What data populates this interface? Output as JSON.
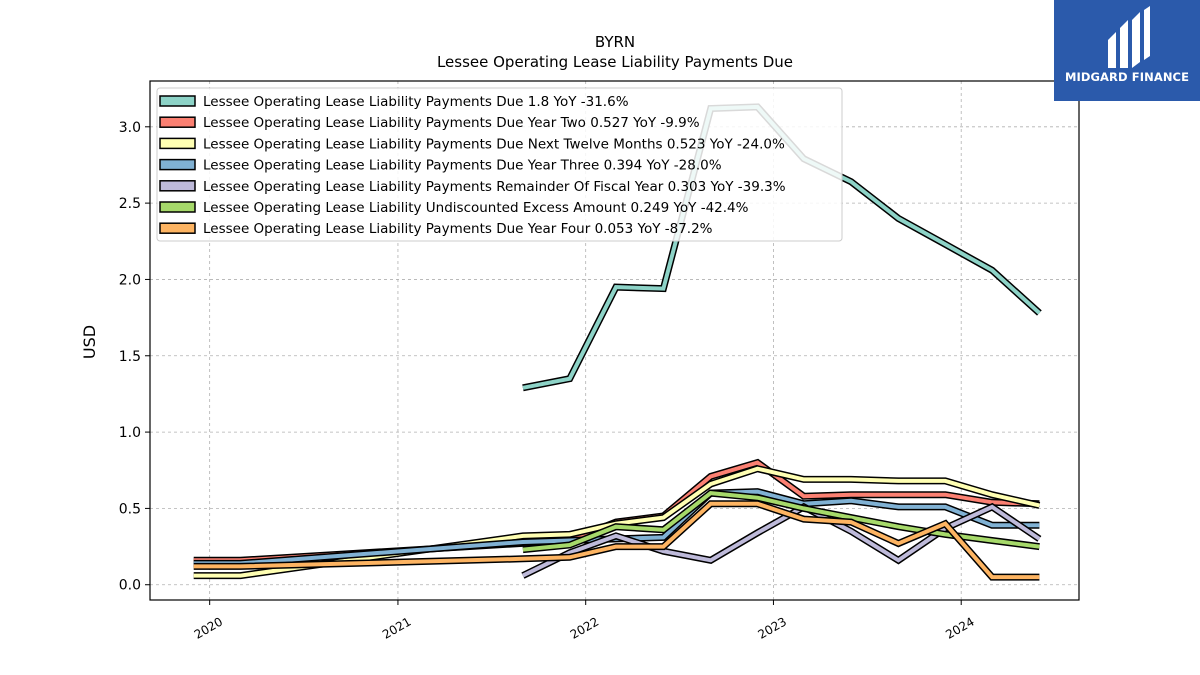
{
  "chart_data": {
    "type": "line",
    "title": "BYRN",
    "subtitle": "Lessee Operating Lease Liability Payments Due",
    "xlabel": "",
    "ylabel": "USD",
    "x_ticks": [
      "2020",
      "2021",
      "2022",
      "2023",
      "2024"
    ],
    "y_ticks": [
      "0.0",
      "0.5",
      "1.0",
      "1.5",
      "2.0",
      "2.5",
      "3.0"
    ],
    "ylim": [
      -0.1,
      3.3
    ],
    "xlim": [
      "2019-09-07",
      "2024-08-17"
    ],
    "grid": true,
    "legend_position": "top-left",
    "series": [
      {
        "name": "Lessee Operating Lease Liability Payments Due  1.8 YoY -31.6%",
        "color": "#8dd3c7",
        "points": [
          [
            "2021-09-01",
            1.29
          ],
          [
            "2021-12-01",
            1.35
          ],
          [
            "2022-03-01",
            1.95
          ],
          [
            "2022-06-01",
            1.94
          ],
          [
            "2022-09-01",
            3.12
          ],
          [
            "2022-12-01",
            3.13
          ],
          [
            "2023-03-01",
            2.79
          ],
          [
            "2023-06-01",
            2.64
          ],
          [
            "2023-09-01",
            2.4
          ],
          [
            "2023-12-01",
            2.23
          ],
          [
            "2024-03-01",
            2.06
          ],
          [
            "2024-06-01",
            1.78
          ]
        ]
      },
      {
        "name": "Lessee Operating Lease Liability Payments Due Year Two  0.527 YoY -9.9%",
        "color": "#fb8072",
        "points": [
          [
            "2019-12-01",
            0.16
          ],
          [
            "2020-03-01",
            0.16
          ],
          [
            "2021-12-01",
            0.29
          ],
          [
            "2022-03-01",
            0.41
          ],
          [
            "2022-06-01",
            0.45
          ],
          [
            "2022-09-01",
            0.71
          ],
          [
            "2022-12-01",
            0.8
          ],
          [
            "2023-03-01",
            0.58
          ],
          [
            "2023-06-01",
            0.59
          ],
          [
            "2023-09-01",
            0.59
          ],
          [
            "2023-12-01",
            0.59
          ],
          [
            "2024-03-01",
            0.54
          ],
          [
            "2024-06-01",
            0.53
          ]
        ]
      },
      {
        "name": "Lessee Operating Lease Liability Payments Due Next Twelve Months  0.523 YoY -24.0%",
        "color": "#ffffb3",
        "points": [
          [
            "2019-12-01",
            0.06
          ],
          [
            "2020-03-01",
            0.06
          ],
          [
            "2021-09-01",
            0.32
          ],
          [
            "2021-12-01",
            0.33
          ],
          [
            "2022-03-01",
            0.4
          ],
          [
            "2022-06-01",
            0.44
          ],
          [
            "2022-09-01",
            0.66
          ],
          [
            "2022-12-01",
            0.76
          ],
          [
            "2023-03-01",
            0.69
          ],
          [
            "2023-06-01",
            0.69
          ],
          [
            "2023-09-01",
            0.68
          ],
          [
            "2023-12-01",
            0.68
          ],
          [
            "2024-03-01",
            0.59
          ],
          [
            "2024-06-01",
            0.52
          ]
        ]
      },
      {
        "name": "Lessee Operating Lease Liability Payments Due Year Three  0.394 YoY -28.0%",
        "color": "#80b1d3",
        "points": [
          [
            "2019-12-01",
            0.14
          ],
          [
            "2020-03-01",
            0.14
          ],
          [
            "2021-09-01",
            0.28
          ],
          [
            "2021-12-01",
            0.29
          ],
          [
            "2022-03-01",
            0.3
          ],
          [
            "2022-06-01",
            0.31
          ],
          [
            "2022-09-01",
            0.6
          ],
          [
            "2022-12-01",
            0.61
          ],
          [
            "2023-03-01",
            0.53
          ],
          [
            "2023-06-01",
            0.55
          ],
          [
            "2023-09-01",
            0.51
          ],
          [
            "2023-12-01",
            0.51
          ],
          [
            "2024-03-01",
            0.39
          ],
          [
            "2024-06-01",
            0.39
          ]
        ]
      },
      {
        "name": "Lessee Operating Lease Liability Payments Remainder Of Fiscal Year  0.303 YoY -39.3%",
        "color": "#bebada",
        "points": [
          [
            "2021-09-01",
            0.06
          ],
          [
            "2021-12-01",
            0.21
          ],
          [
            "2022-03-01",
            0.32
          ],
          [
            "2022-06-01",
            0.22
          ],
          [
            "2022-09-01",
            0.16
          ],
          [
            "2022-12-01",
            0.34
          ],
          [
            "2023-03-01",
            0.51
          ],
          [
            "2023-06-01",
            0.35
          ],
          [
            "2023-09-01",
            0.16
          ],
          [
            "2023-12-01",
            0.37
          ],
          [
            "2024-03-01",
            0.51
          ],
          [
            "2024-06-01",
            0.3
          ]
        ]
      },
      {
        "name": "Lessee Operating Lease Liability Undiscounted Excess Amount  0.249 YoY -42.4%",
        "color": "#a6d96a",
        "points": [
          [
            "2021-09-01",
            0.23
          ],
          [
            "2021-12-01",
            0.26
          ],
          [
            "2022-03-01",
            0.38
          ],
          [
            "2022-06-01",
            0.36
          ],
          [
            "2022-09-01",
            0.6
          ],
          [
            "2022-12-01",
            0.57
          ],
          [
            "2023-03-01",
            0.5
          ],
          [
            "2023-06-01",
            0.44
          ],
          [
            "2023-09-01",
            0.38
          ],
          [
            "2023-12-01",
            0.33
          ],
          [
            "2024-03-01",
            0.29
          ],
          [
            "2024-06-01",
            0.25
          ]
        ]
      },
      {
        "name": "Lessee Operating Lease Liability Payments Due Year Four  0.053 YoY -87.2%",
        "color": "#fdb462",
        "points": [
          [
            "2019-12-01",
            0.12
          ],
          [
            "2020-03-01",
            0.12
          ],
          [
            "2021-09-01",
            0.17
          ],
          [
            "2021-12-01",
            0.18
          ],
          [
            "2022-03-01",
            0.25
          ],
          [
            "2022-06-01",
            0.25
          ],
          [
            "2022-09-01",
            0.53
          ],
          [
            "2022-12-01",
            0.53
          ],
          [
            "2023-03-01",
            0.43
          ],
          [
            "2023-06-01",
            0.41
          ],
          [
            "2023-09-01",
            0.27
          ],
          [
            "2023-12-01",
            0.4
          ],
          [
            "2024-03-01",
            0.05
          ],
          [
            "2024-06-01",
            0.05
          ]
        ]
      }
    ]
  },
  "logo": {
    "text": "MIDGARD FINANCE",
    "color": "#2b5aab"
  }
}
